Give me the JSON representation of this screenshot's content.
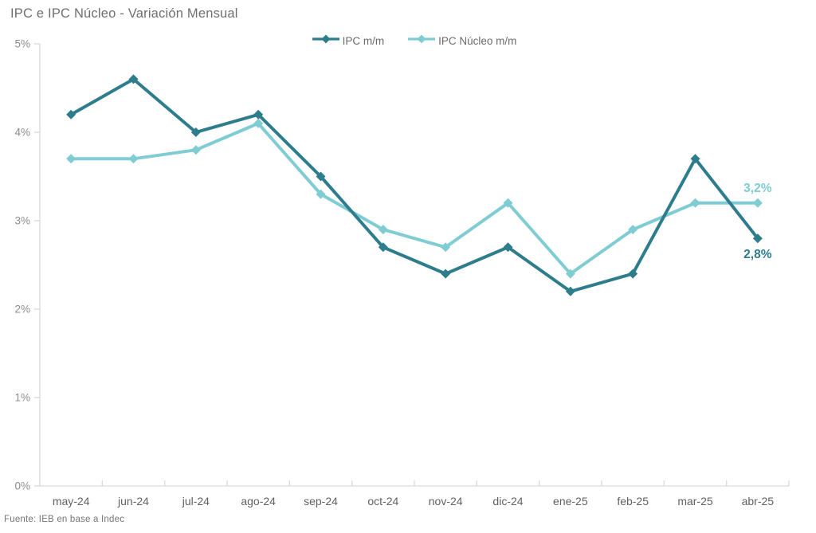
{
  "page": {
    "title": "IPC e IPC Núcleo - Variación Mensual",
    "source_note": "Fuente: IEB en base a Indec"
  },
  "legend": {
    "items": [
      {
        "label": "IPC m/m",
        "color": "#2D7D8C"
      },
      {
        "label": "IPC Núcleo m/m",
        "color": "#7FCDD3"
      }
    ]
  },
  "chart_data": {
    "type": "line",
    "title": "IPC e IPC Núcleo - Variación Mensual",
    "categories": [
      "may-24",
      "jun-24",
      "jul-24",
      "ago-24",
      "sep-24",
      "oct-24",
      "nov-24",
      "dic-24",
      "ene-25",
      "feb-25",
      "mar-25",
      "abr-25"
    ],
    "series": [
      {
        "name": "IPC m/m",
        "color": "#2D7D8C",
        "values": [
          4.2,
          4.6,
          4.0,
          4.2,
          3.5,
          2.7,
          2.4,
          2.7,
          2.2,
          2.4,
          3.7,
          2.8
        ],
        "end_label": "2,8%",
        "end_label_position": "below"
      },
      {
        "name": "IPC Núcleo m/m",
        "color": "#7FCDD3",
        "values": [
          3.7,
          3.7,
          3.8,
          4.1,
          3.3,
          2.9,
          2.7,
          3.2,
          2.4,
          2.9,
          3.2,
          3.2
        ],
        "end_label": "3,2%",
        "end_label_position": "above"
      }
    ],
    "xlabel": "",
    "ylabel": "",
    "ylim": [
      0,
      5
    ],
    "yticks": [
      {
        "value": 0,
        "label": "0%"
      },
      {
        "value": 1,
        "label": "1%"
      },
      {
        "value": 2,
        "label": "2%"
      },
      {
        "value": 3,
        "label": "3%"
      },
      {
        "value": 4,
        "label": "4%"
      },
      {
        "value": 5,
        "label": "5%"
      }
    ],
    "grid": false,
    "legend_position": "top",
    "colors": {
      "axis_line": "#D9D9D9",
      "ytick_text": "#8C8C8C",
      "xtick_text": "#616161"
    }
  }
}
